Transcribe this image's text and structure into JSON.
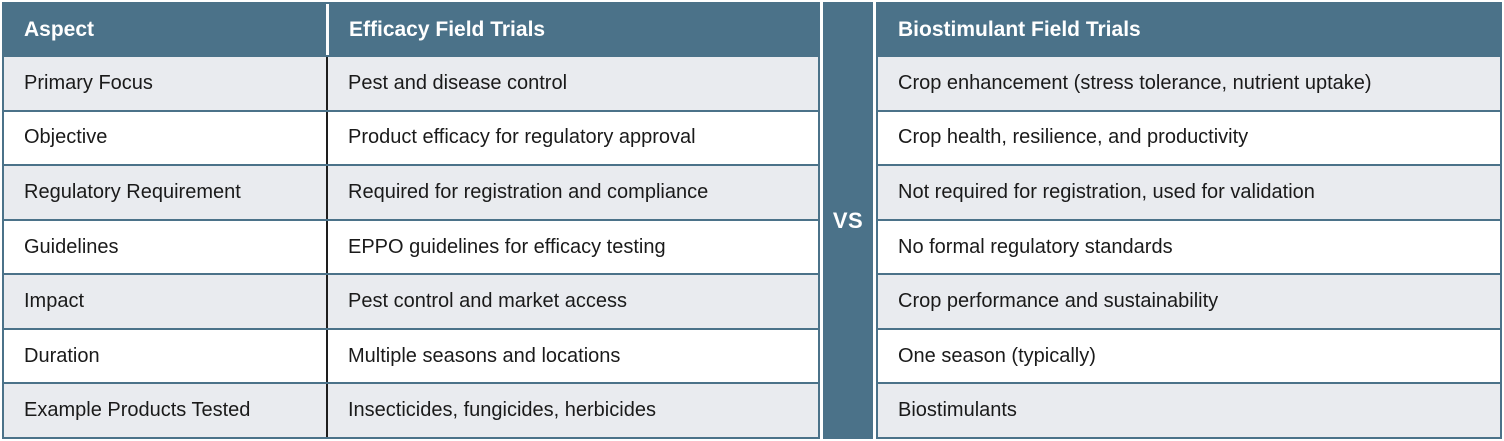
{
  "vs_label": "VS",
  "colors": {
    "header_teal": "#4b7289",
    "alt_row_gray": "#e9ebef",
    "row_white": "#ffffff",
    "column_divider_black": "#1e1e1e",
    "header_text": "#ffffff",
    "body_text": "#1a1a1a"
  },
  "left_table": {
    "headers": [
      "Aspect",
      "Efficacy Field Trials"
    ],
    "rows": [
      [
        "Primary Focus",
        "Pest and disease control"
      ],
      [
        "Objective",
        "Product efficacy for regulatory approval"
      ],
      [
        "Regulatory Requirement",
        "Required for registration and compliance"
      ],
      [
        "Guidelines",
        "EPPO guidelines for efficacy testing"
      ],
      [
        "Impact",
        "Pest control and market access"
      ],
      [
        "Duration",
        "Multiple seasons and locations"
      ],
      [
        "Example Products Tested",
        "Insecticides, fungicides, herbicides"
      ]
    ]
  },
  "right_table": {
    "header": "Biostimulant Field Trials",
    "rows": [
      "Crop enhancement (stress tolerance, nutrient uptake)",
      "Crop health, resilience, and productivity",
      "Not required for registration, used for validation",
      "No formal regulatory standards",
      "Crop performance and sustainability",
      "One season (typically)",
      "Biostimulants"
    ]
  }
}
